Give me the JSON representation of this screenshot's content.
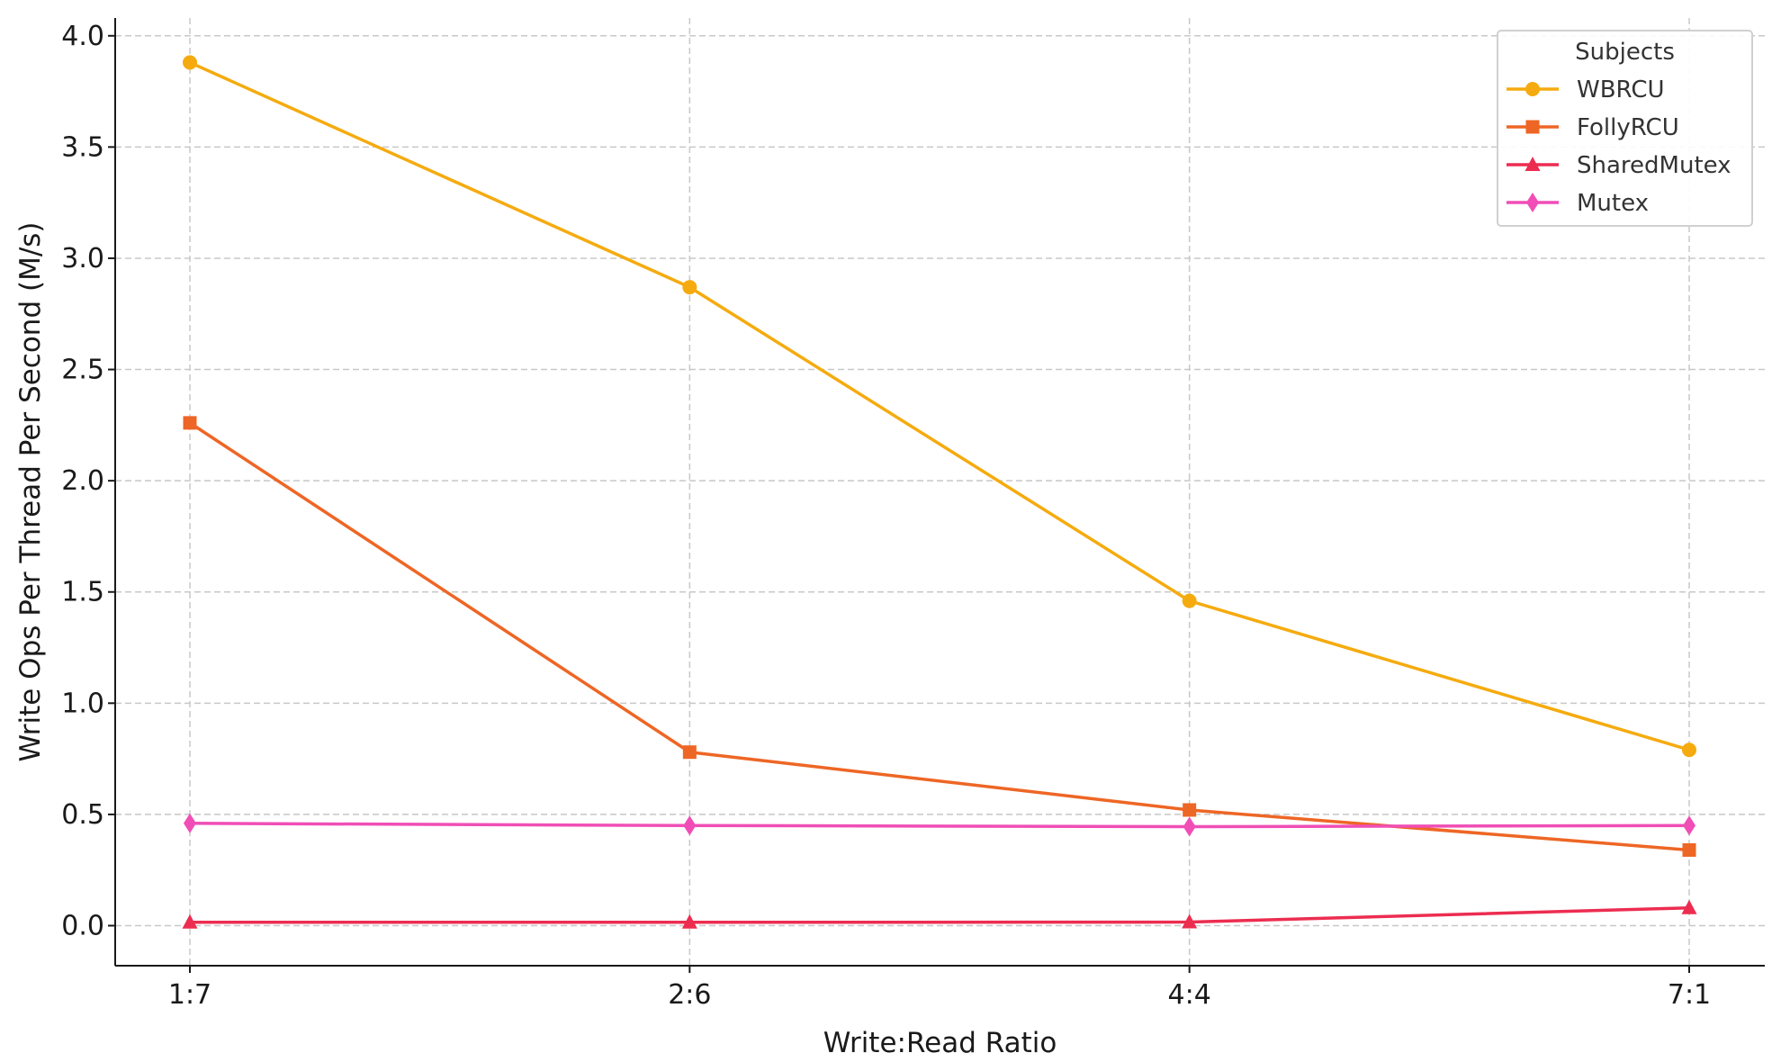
{
  "chart_data": {
    "type": "line",
    "title": "",
    "xlabel": "Write:Read Ratio",
    "ylabel": "Write Ops Per Thread Per Second (M/s)",
    "categories": [
      "1:7",
      "2:6",
      "4:4",
      "7:1"
    ],
    "ylim": [
      -0.18,
      4.08
    ],
    "yticks": [
      0.0,
      0.5,
      1.0,
      1.5,
      2.0,
      2.5,
      3.0,
      3.5,
      4.0
    ],
    "ytick_labels": [
      "0.0",
      "0.5",
      "1.0",
      "1.5",
      "2.0",
      "2.5",
      "3.0",
      "3.5",
      "4.0"
    ],
    "grid": true,
    "legend": {
      "title": "Subjects",
      "placement": "top-right"
    },
    "series": [
      {
        "name": "WBRCU",
        "color": "#f5ab0f",
        "marker": "circle",
        "values": [
          3.88,
          2.87,
          1.46,
          0.79
        ]
      },
      {
        "name": "FollyRCU",
        "color": "#ee6625",
        "marker": "square",
        "values": [
          2.26,
          0.78,
          0.52,
          0.34
        ]
      },
      {
        "name": "SharedMutex",
        "color": "#ec2d50",
        "marker": "triangle",
        "values": [
          0.015,
          0.015,
          0.016,
          0.08
        ]
      },
      {
        "name": "Mutex",
        "color": "#f04eb6",
        "marker": "diamond",
        "values": [
          0.46,
          0.45,
          0.445,
          0.45
        ]
      }
    ]
  }
}
